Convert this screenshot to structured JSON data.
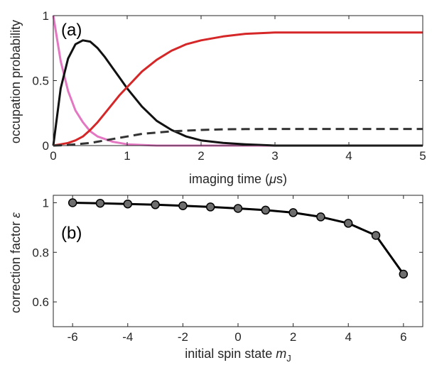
{
  "chart_data": [
    {
      "type": "line",
      "panel_label": "(a)",
      "xlabel": "imaging time (",
      "xlabel_mu": "μ",
      "xlabel_end": "s)",
      "ylabel": "occupation probability",
      "xlim": [
        0,
        5
      ],
      "ylim": [
        0,
        1
      ],
      "xticks": [
        0,
        1,
        2,
        3,
        4,
        5
      ],
      "yticks": [
        0,
        0.5,
        1
      ],
      "grid": false,
      "x": [
        0,
        0.1,
        0.2,
        0.3,
        0.4,
        0.5,
        0.6,
        0.7,
        0.8,
        0.9,
        1.0,
        1.2,
        1.4,
        1.6,
        1.8,
        2.0,
        2.3,
        2.6,
        3.0,
        3.5,
        4.0,
        4.5,
        5.0
      ],
      "series": [
        {
          "color": "#e377c2",
          "style": "solid",
          "values": [
            1.0,
            0.65,
            0.42,
            0.27,
            0.18,
            0.11,
            0.07,
            0.05,
            0.03,
            0.02,
            0.01,
            0.005,
            0.0,
            0.0,
            0.0,
            0.0,
            0.0,
            0.0,
            0.0,
            0.0,
            0.0,
            0.0,
            0.0
          ]
        },
        {
          "color": "#111111",
          "style": "solid",
          "values": [
            0.0,
            0.44,
            0.67,
            0.78,
            0.81,
            0.8,
            0.75,
            0.68,
            0.6,
            0.52,
            0.44,
            0.3,
            0.19,
            0.12,
            0.07,
            0.04,
            0.02,
            0.01,
            0.0,
            0.0,
            0.0,
            0.0,
            0.0
          ]
        },
        {
          "color": "#d62728",
          "style": "solid",
          "values": [
            0.0,
            0.01,
            0.02,
            0.04,
            0.07,
            0.12,
            0.18,
            0.25,
            0.32,
            0.39,
            0.45,
            0.57,
            0.66,
            0.73,
            0.78,
            0.81,
            0.84,
            0.86,
            0.87,
            0.87,
            0.87,
            0.87,
            0.87
          ]
        },
        {
          "color": "#333333",
          "style": "dashed",
          "values": [
            0.0,
            0.002,
            0.005,
            0.01,
            0.015,
            0.02,
            0.03,
            0.04,
            0.05,
            0.06,
            0.07,
            0.09,
            0.1,
            0.11,
            0.115,
            0.12,
            0.125,
            0.127,
            0.128,
            0.128,
            0.128,
            0.128,
            0.128
          ]
        }
      ]
    },
    {
      "type": "line",
      "markers": true,
      "panel_label": "(b)",
      "xlabel": "initial spin state ",
      "xlabel_var": "m",
      "xlabel_sub": "J",
      "ylabel": "correction factor ",
      "ylabel_sym": "ε",
      "xlim": [
        -6.7,
        6.7
      ],
      "ylim": [
        0.5,
        1.03
      ],
      "xticks": [
        -6,
        -4,
        -2,
        0,
        2,
        4,
        6
      ],
      "yticks": [
        0.6,
        0.8,
        1
      ],
      "grid": false,
      "x": [
        -6,
        -5,
        -4,
        -3,
        -2,
        -1,
        0,
        1,
        2,
        3,
        4,
        5,
        6
      ],
      "values": [
        1.0,
        0.998,
        0.995,
        0.992,
        0.988,
        0.983,
        0.977,
        0.97,
        0.96,
        0.943,
        0.917,
        0.868,
        0.712
      ],
      "color": "#000000",
      "marker_color": "#6e6e6e"
    }
  ]
}
